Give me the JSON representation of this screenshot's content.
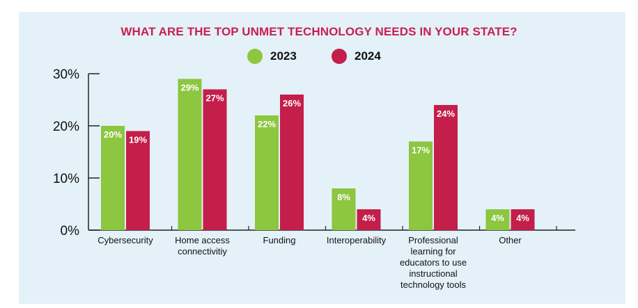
{
  "chart_data": {
    "type": "bar",
    "title": "WHAT ARE THE TOP UNMET TECHNOLOGY NEEDS IN YOUR STATE?",
    "xlabel": "",
    "ylabel": "",
    "ylim": [
      0,
      30
    ],
    "yticks": [
      "0%",
      "10%",
      "20%",
      "30%"
    ],
    "ytick_values": [
      0,
      10,
      20,
      30
    ],
    "legend_position": "top-center",
    "categories": [
      [
        "Cybersecurity"
      ],
      [
        "Home access",
        "connectivitiy"
      ],
      [
        "Funding"
      ],
      [
        "Interoperability"
      ],
      [
        "Professional",
        "learning for",
        "educators to use",
        "instructional",
        "technology tools"
      ],
      [
        "Other"
      ]
    ],
    "series": [
      {
        "name": "2023",
        "color": "#8dc63f",
        "values": [
          20,
          29,
          22,
          8,
          17,
          4
        ],
        "labels": [
          "20%",
          "29%",
          "22%",
          "8%",
          "17%",
          "4%"
        ]
      },
      {
        "name": "2024",
        "color": "#c41e4a",
        "values": [
          19,
          27,
          26,
          4,
          24,
          4
        ],
        "labels": [
          "19%",
          "27%",
          "26%",
          "4%",
          "24%",
          "4%"
        ]
      }
    ]
  }
}
